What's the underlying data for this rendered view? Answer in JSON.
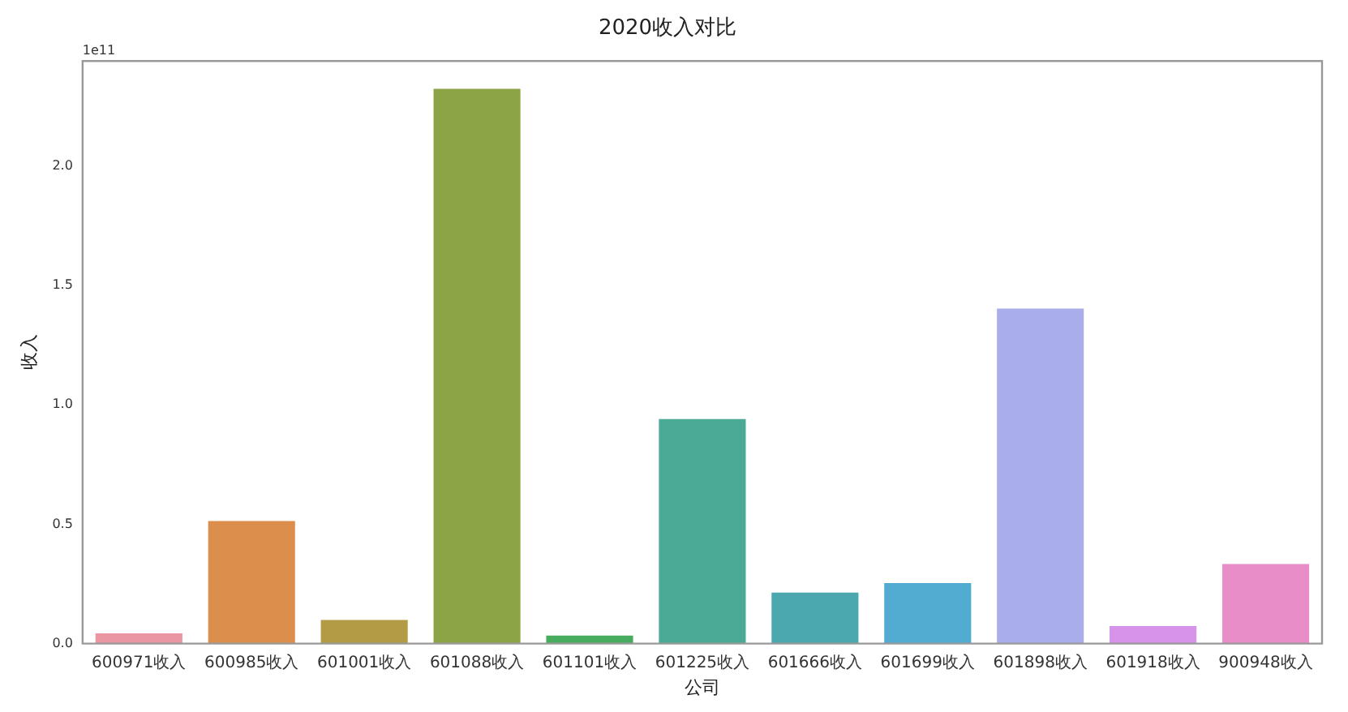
{
  "chart_data": {
    "type": "bar",
    "title": "2020收入对比",
    "xlabel": "公司",
    "ylabel": "收入",
    "categories": [
      "600971收入",
      "600985收入",
      "601001收入",
      "601088收入",
      "601101收入",
      "601225收入",
      "601666收入",
      "601699收入",
      "601898收入",
      "601918收入",
      "900948收入"
    ],
    "values": [
      0.05,
      0.52,
      0.106,
      2.33,
      0.04,
      0.947,
      0.22,
      0.26,
      1.41,
      0.08,
      0.34
    ],
    "colors": [
      "#ea96a3",
      "#dc8e4d",
      "#b39b45",
      "#8ca445",
      "#48ac5e",
      "#4aaa96",
      "#4ba8ae",
      "#52abd1",
      "#a9adea",
      "#d693e9",
      "#e88dc7"
    ],
    "ylim": [
      0,
      2.44
    ],
    "yticks": [
      {
        "value": 0,
        "label": "0.0"
      },
      {
        "value": 0.5,
        "label": "0.5"
      },
      {
        "value": 1,
        "label": "1.0"
      },
      {
        "value": 1.5,
        "label": "1.5"
      },
      {
        "value": 2,
        "label": "2.0"
      }
    ],
    "annotations": [
      "1e11"
    ],
    "grid": false,
    "legend": false
  }
}
